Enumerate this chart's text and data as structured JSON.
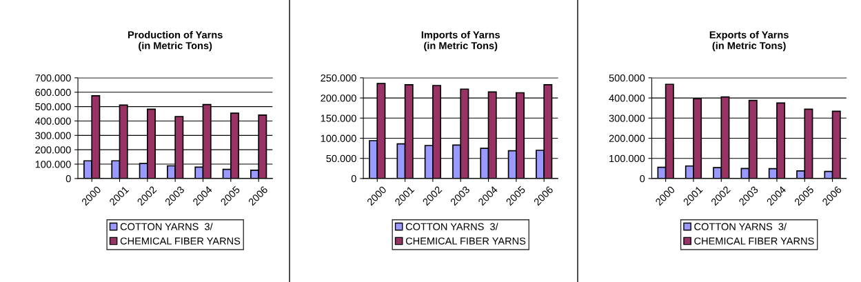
{
  "chart_data": [
    {
      "type": "bar",
      "title": "Production of Yarns\n(in Metric Tons)",
      "categories": [
        "2000",
        "2001",
        "2002",
        "2003",
        "2004",
        "2005",
        "2006"
      ],
      "series": [
        {
          "name": "COTTON YARNS  3/",
          "color": "#9999ff",
          "values": [
            123000,
            123000,
            104000,
            88000,
            79000,
            64000,
            58000
          ]
        },
        {
          "name": "CHEMICAL FIBER YARNS",
          "color": "#993366",
          "values": [
            575000,
            511000,
            482000,
            431000,
            514000,
            454000,
            441000
          ]
        }
      ],
      "ylim": [
        0,
        700000
      ],
      "yticks": [
        {
          "value": 0,
          "label": "0"
        },
        {
          "value": 100000,
          "label": "100.000"
        },
        {
          "value": 200000,
          "label": "200.000"
        },
        {
          "value": 300000,
          "label": "300.000"
        },
        {
          "value": 400000,
          "label": "400.000"
        },
        {
          "value": 500000,
          "label": "500.000"
        },
        {
          "value": 600000,
          "label": "600.000"
        },
        {
          "value": 700000,
          "label": "700.000"
        }
      ],
      "grid": "y",
      "legend": "bottom"
    },
    {
      "type": "bar",
      "title": "Imports of Yarns\n(in Metric Tons)",
      "categories": [
        "2000",
        "2001",
        "2002",
        "2003",
        "2004",
        "2005",
        "2006"
      ],
      "series": [
        {
          "name": "COTTON YARNS  3/",
          "color": "#9999ff",
          "values": [
            94000,
            86000,
            82000,
            83000,
            75000,
            69000,
            70000
          ]
        },
        {
          "name": "CHEMICAL FIBER YARNS",
          "color": "#993366",
          "values": [
            236000,
            233000,
            231000,
            222000,
            215000,
            213000,
            233000
          ]
        }
      ],
      "ylim": [
        0,
        250000
      ],
      "yticks": [
        {
          "value": 0,
          "label": "0"
        },
        {
          "value": 50000,
          "label": "50.000"
        },
        {
          "value": 100000,
          "label": "100.000"
        },
        {
          "value": 150000,
          "label": "150.000"
        },
        {
          "value": 200000,
          "label": "200.000"
        },
        {
          "value": 250000,
          "label": "250.000"
        }
      ],
      "grid": "y",
      "legend": "bottom"
    },
    {
      "type": "bar",
      "title": "Exports of Yarns\n(in Metric Tons)",
      "categories": [
        "2000",
        "2001",
        "2002",
        "2003",
        "2004",
        "2005",
        "2006"
      ],
      "series": [
        {
          "name": "COTTON YARNS  3/",
          "color": "#9999ff",
          "values": [
            56000,
            62000,
            54000,
            50000,
            49000,
            38000,
            35000
          ]
        },
        {
          "name": "CHEMICAL FIBER YARNS",
          "color": "#993366",
          "values": [
            468000,
            396000,
            405000,
            388000,
            375000,
            344000,
            334000
          ]
        }
      ],
      "ylim": [
        0,
        500000
      ],
      "yticks": [
        {
          "value": 0,
          "label": "0"
        },
        {
          "value": 100000,
          "label": "100.000"
        },
        {
          "value": 200000,
          "label": "200.000"
        },
        {
          "value": 300000,
          "label": "300.000"
        },
        {
          "value": 400000,
          "label": "400.000"
        },
        {
          "value": 500000,
          "label": "500.000"
        }
      ],
      "grid": "y",
      "legend": "bottom"
    }
  ]
}
